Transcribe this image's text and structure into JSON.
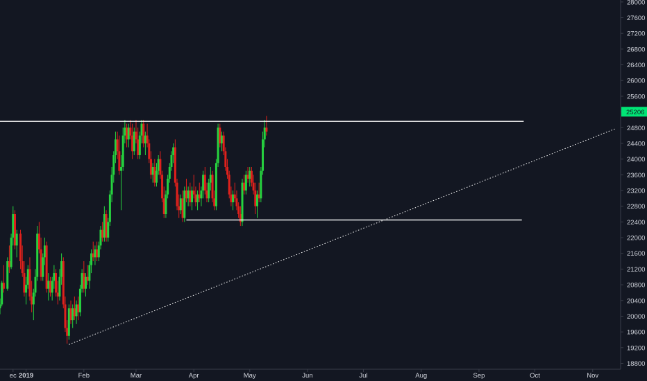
{
  "chart_data": {
    "type": "candlestick",
    "y_axis": {
      "ticks": [
        18800,
        19200,
        19600,
        20000,
        20400,
        20800,
        21200,
        21600,
        22000,
        22400,
        22800,
        23200,
        23600,
        24000,
        24400,
        24800,
        25200,
        25600,
        26000,
        26400,
        26800,
        27200,
        27600,
        28000
      ],
      "range": [
        18650,
        28050
      ],
      "position": "right"
    },
    "x_axis": {
      "labels": [
        {
          "text": "ec",
          "day": -7
        },
        {
          "text": "2019",
          "day": 0,
          "bold": true
        },
        {
          "text": "Feb",
          "day": 31
        },
        {
          "text": "Mar",
          "day": 59
        },
        {
          "text": "Apr",
          "day": 90
        },
        {
          "text": "May",
          "day": 120
        },
        {
          "text": "Jun",
          "day": 151
        },
        {
          "text": "Jul",
          "day": 181
        },
        {
          "text": "Aug",
          "day": 212
        },
        {
          "text": "Sep",
          "day": 243
        },
        {
          "text": "Oct",
          "day": 273
        },
        {
          "text": "Nov",
          "day": 304
        }
      ],
      "range": [
        -14,
        319
      ]
    },
    "last_price": {
      "value": 25206,
      "label": "25206",
      "color": "#00e676"
    },
    "colors": {
      "up": "#26d33f",
      "down": "#e0211c",
      "background": "#131722",
      "text": "#d1d4dc",
      "lines": "#ffffff"
    },
    "horizontal_lines": [
      {
        "y": 24960,
        "x_start": -14,
        "x_end": 267
      },
      {
        "y": 22450,
        "x_start": 86,
        "x_end": 266
      }
    ],
    "trend_line": {
      "from": {
        "day": 23,
        "y": 19280
      },
      "to": {
        "day": 316,
        "y": 24770
      },
      "style": "dotted"
    },
    "candles": [
      [
        -14,
        20200,
        20450,
        20050,
        20300
      ],
      [
        -13,
        20300,
        20900,
        20250,
        20850
      ],
      [
        -12,
        20850,
        21300,
        20600,
        20700
      ],
      [
        -10,
        20700,
        21500,
        20650,
        21400
      ],
      [
        -9,
        21400,
        21800,
        21100,
        21250
      ],
      [
        -8,
        21250,
        22100,
        21200,
        22000
      ],
      [
        -7,
        22000,
        22800,
        21800,
        22600
      ],
      [
        -6,
        22600,
        22700,
        21700,
        21800
      ],
      [
        -5,
        21800,
        22200,
        21500,
        22100
      ],
      [
        -3,
        22100,
        22200,
        21200,
        21400
      ],
      [
        -2,
        21400,
        21800,
        21000,
        21100
      ],
      [
        -1,
        21100,
        21400,
        20500,
        20600
      ],
      [
        0,
        20600,
        21000,
        20300,
        20800
      ],
      [
        1,
        20800,
        21300,
        20700,
        21200
      ],
      [
        2,
        21200,
        21500,
        20400,
        20500
      ],
      [
        3,
        20500,
        20900,
        20100,
        20300
      ],
      [
        4,
        20300,
        20700,
        19900,
        20600
      ],
      [
        5,
        20600,
        21200,
        20500,
        21000
      ],
      [
        6,
        21000,
        22300,
        20900,
        22100
      ],
      [
        7,
        22100,
        22400,
        21600,
        21700
      ],
      [
        8,
        21700,
        22000,
        20900,
        21000
      ],
      [
        9,
        21000,
        21600,
        20900,
        21500
      ],
      [
        10,
        21500,
        22000,
        21300,
        21800
      ],
      [
        11,
        21800,
        21900,
        20600,
        20700
      ],
      [
        12,
        20700,
        21100,
        20400,
        20900
      ],
      [
        13,
        20900,
        21000,
        20500,
        20600
      ],
      [
        14,
        20600,
        21000,
        20400,
        20900
      ],
      [
        15,
        20900,
        21300,
        20700,
        21100
      ],
      [
        16,
        21100,
        21200,
        20500,
        20600
      ],
      [
        17,
        20600,
        20900,
        20300,
        20500
      ],
      [
        18,
        20500,
        21200,
        20400,
        21000
      ],
      [
        19,
        21000,
        21600,
        20800,
        21400
      ],
      [
        20,
        21400,
        21500,
        20200,
        20300
      ],
      [
        21,
        20300,
        20500,
        19600,
        19700
      ],
      [
        22,
        19700,
        19900,
        19300,
        19500
      ],
      [
        23,
        19500,
        20300,
        19400,
        20200
      ],
      [
        24,
        20200,
        20400,
        19800,
        19900
      ],
      [
        25,
        19900,
        20300,
        19700,
        20200
      ],
      [
        26,
        20200,
        20500,
        19900,
        20000
      ],
      [
        27,
        20000,
        20400,
        19800,
        20300
      ],
      [
        28,
        20300,
        20500,
        19900,
        20100
      ],
      [
        29,
        20100,
        20800,
        20000,
        20700
      ],
      [
        30,
        20700,
        21200,
        20600,
        21100
      ],
      [
        31,
        21100,
        21400,
        20600,
        20700
      ],
      [
        32,
        20700,
        21100,
        20500,
        21000
      ],
      [
        33,
        21000,
        21300,
        20800,
        20900
      ],
      [
        34,
        20900,
        21400,
        20700,
        21300
      ],
      [
        35,
        21300,
        21700,
        21100,
        21600
      ],
      [
        36,
        21600,
        21900,
        21400,
        21500
      ],
      [
        37,
        21500,
        21800,
        21300,
        21700
      ],
      [
        38,
        21700,
        21900,
        21400,
        21500
      ],
      [
        39,
        21500,
        21900,
        21400,
        21800
      ],
      [
        40,
        21800,
        22300,
        21700,
        22200
      ],
      [
        41,
        22200,
        22400,
        21900,
        22000
      ],
      [
        42,
        22000,
        22800,
        21900,
        22600
      ],
      [
        43,
        22600,
        22700,
        21900,
        22000
      ],
      [
        44,
        22000,
        22500,
        21900,
        22400
      ],
      [
        45,
        22400,
        23200,
        22300,
        23100
      ],
      [
        46,
        23100,
        23800,
        22900,
        23600
      ],
      [
        47,
        23600,
        24200,
        23400,
        24100
      ],
      [
        48,
        24100,
        24700,
        23900,
        24500
      ],
      [
        49,
        24500,
        24700,
        24000,
        24200
      ],
      [
        50,
        24200,
        24600,
        23600,
        23700
      ],
      [
        51,
        23700,
        24100,
        22700,
        23800
      ],
      [
        52,
        23800,
        24800,
        23700,
        24600
      ],
      [
        53,
        24600,
        25000,
        24400,
        24800
      ],
      [
        54,
        24800,
        24900,
        24300,
        24500
      ],
      [
        55,
        24500,
        24900,
        24300,
        24800
      ],
      [
        56,
        24800,
        25000,
        24500,
        24600
      ],
      [
        57,
        24600,
        24900,
        24000,
        24200
      ],
      [
        58,
        24200,
        24800,
        24100,
        24700
      ],
      [
        59,
        24700,
        25000,
        24400,
        24500
      ],
      [
        60,
        24500,
        24800,
        24000,
        24100
      ],
      [
        61,
        24100,
        24700,
        24000,
        24600
      ],
      [
        62,
        24600,
        25000,
        24400,
        24900
      ],
      [
        63,
        24900,
        25000,
        24300,
        24400
      ],
      [
        64,
        24400,
        24700,
        24100,
        24600
      ],
      [
        65,
        24600,
        24900,
        24300,
        24400
      ],
      [
        66,
        24400,
        24500,
        23900,
        24000
      ],
      [
        67,
        24000,
        24200,
        23500,
        23600
      ],
      [
        68,
        23600,
        23900,
        23400,
        23800
      ],
      [
        69,
        23800,
        24000,
        23300,
        23400
      ],
      [
        70,
        23400,
        23900,
        23300,
        23700
      ],
      [
        71,
        23700,
        24100,
        23600,
        24000
      ],
      [
        72,
        24000,
        24200,
        23500,
        23600
      ],
      [
        73,
        23600,
        23700,
        22900,
        23000
      ],
      [
        74,
        23000,
        23300,
        22500,
        22600
      ],
      [
        75,
        22600,
        23200,
        22500,
        23100
      ],
      [
        76,
        23100,
        23600,
        23000,
        23500
      ],
      [
        77,
        23500,
        23900,
        23400,
        23800
      ],
      [
        78,
        23800,
        24200,
        23700,
        24100
      ],
      [
        79,
        24100,
        24400,
        23900,
        24300
      ],
      [
        80,
        24300,
        24500,
        23300,
        23400
      ],
      [
        81,
        23400,
        23500,
        22700,
        22800
      ],
      [
        82,
        22800,
        23100,
        22500,
        22700
      ],
      [
        83,
        22700,
        23100,
        22600,
        23000
      ],
      [
        84,
        23000,
        23200,
        22400,
        22500
      ],
      [
        85,
        22500,
        23300,
        22400,
        23200
      ],
      [
        86,
        23200,
        23500,
        22900,
        23000
      ],
      [
        87,
        23000,
        23300,
        22800,
        23200
      ],
      [
        88,
        23200,
        23400,
        22800,
        22900
      ],
      [
        89,
        22900,
        23300,
        22700,
        23200
      ],
      [
        90,
        23200,
        23600,
        23000,
        23100
      ],
      [
        91,
        23100,
        23300,
        22800,
        22900
      ],
      [
        92,
        22900,
        23200,
        22700,
        23100
      ],
      [
        93,
        23100,
        23400,
        22900,
        23000
      ],
      [
        94,
        23000,
        23300,
        22800,
        23200
      ],
      [
        95,
        23200,
        23700,
        23000,
        23600
      ],
      [
        96,
        23600,
        23800,
        23100,
        23200
      ],
      [
        97,
        23200,
        23400,
        22900,
        23000
      ],
      [
        98,
        23000,
        23500,
        22900,
        23400
      ],
      [
        99,
        23400,
        23800,
        23200,
        23600
      ],
      [
        100,
        23600,
        23700,
        22900,
        23000
      ],
      [
        101,
        23000,
        23200,
        22700,
        22800
      ],
      [
        102,
        22800,
        24000,
        22700,
        23900
      ],
      [
        103,
        23900,
        24900,
        23800,
        24800
      ],
      [
        104,
        24800,
        24900,
        24300,
        24400
      ],
      [
        105,
        24400,
        24700,
        24200,
        24600
      ],
      [
        106,
        24600,
        24700,
        24100,
        24200
      ],
      [
        107,
        24200,
        24300,
        23700,
        23800
      ],
      [
        108,
        23800,
        24000,
        23500,
        23600
      ],
      [
        109,
        23600,
        23700,
        23000,
        23100
      ],
      [
        110,
        23100,
        23300,
        22800,
        22900
      ],
      [
        111,
        22900,
        23200,
        22700,
        23100
      ],
      [
        112,
        23100,
        23400,
        22900,
        23000
      ],
      [
        113,
        23000,
        23200,
        22700,
        22800
      ],
      [
        114,
        22800,
        22900,
        22500,
        22600
      ],
      [
        115,
        22600,
        22800,
        22300,
        22400
      ],
      [
        116,
        22400,
        23500,
        22300,
        23400
      ],
      [
        117,
        23400,
        23600,
        23100,
        23200
      ],
      [
        118,
        23200,
        23700,
        23100,
        23600
      ],
      [
        119,
        23600,
        23800,
        23400,
        23500
      ],
      [
        120,
        23500,
        23800,
        23300,
        23700
      ],
      [
        121,
        23700,
        23800,
        23300,
        23400
      ],
      [
        122,
        23400,
        23600,
        23100,
        23200
      ],
      [
        123,
        23200,
        23400,
        22600,
        22800
      ],
      [
        124,
        22800,
        23200,
        22500,
        23100
      ],
      [
        125,
        23100,
        23400,
        22900,
        23000
      ],
      [
        126,
        23000,
        23800,
        22900,
        23700
      ],
      [
        127,
        23700,
        24700,
        23600,
        24500
      ],
      [
        128,
        24500,
        25000,
        24300,
        24800
      ],
      [
        129,
        24800,
        25100,
        24600,
        24700
      ]
    ]
  }
}
